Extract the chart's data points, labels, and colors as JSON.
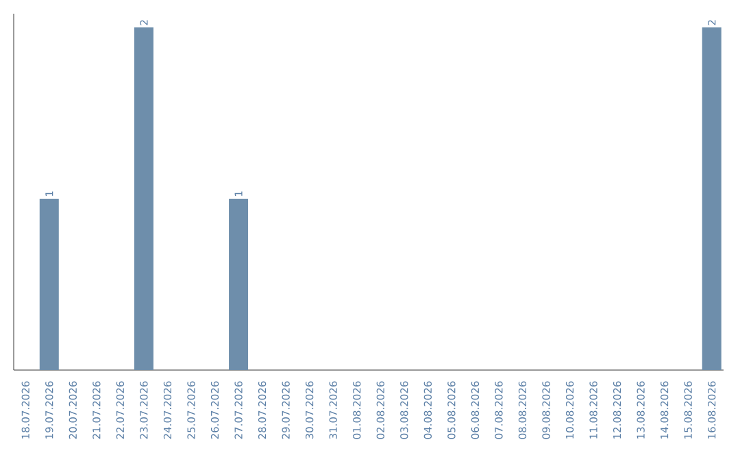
{
  "chart_data": {
    "type": "bar",
    "categories": [
      "18.07.2026",
      "19.07.2026",
      "20.07.2026",
      "21.07.2026",
      "22.07.2026",
      "23.07.2026",
      "24.07.2026",
      "25.07.2026",
      "26.07.2026",
      "27.07.2026",
      "28.07.2026",
      "29.07.2026",
      "30.07.2026",
      "31.07.2026",
      "01.08.2026",
      "02.08.2026",
      "03.08.2026",
      "04.08.2026",
      "05.08.2026",
      "06.08.2026",
      "07.08.2026",
      "08.08.2026",
      "09.08.2026",
      "10.08.2026",
      "11.08.2026",
      "12.08.2026",
      "13.08.2026",
      "14.08.2026",
      "15.08.2026",
      "16.08.2026"
    ],
    "values": [
      0,
      1,
      0,
      0,
      0,
      2,
      0,
      0,
      0,
      1,
      0,
      0,
      0,
      0,
      0,
      0,
      0,
      0,
      0,
      0,
      0,
      0,
      0,
      0,
      0,
      0,
      0,
      0,
      0,
      2
    ],
    "value_labels": [
      null,
      "1",
      null,
      null,
      null,
      "2",
      null,
      null,
      null,
      "1",
      null,
      null,
      null,
      null,
      null,
      null,
      null,
      null,
      null,
      null,
      null,
      null,
      null,
      null,
      null,
      null,
      null,
      null,
      null,
      "2"
    ],
    "color": "#6e8eab",
    "tick_labels": "x",
    "grid": false
  }
}
